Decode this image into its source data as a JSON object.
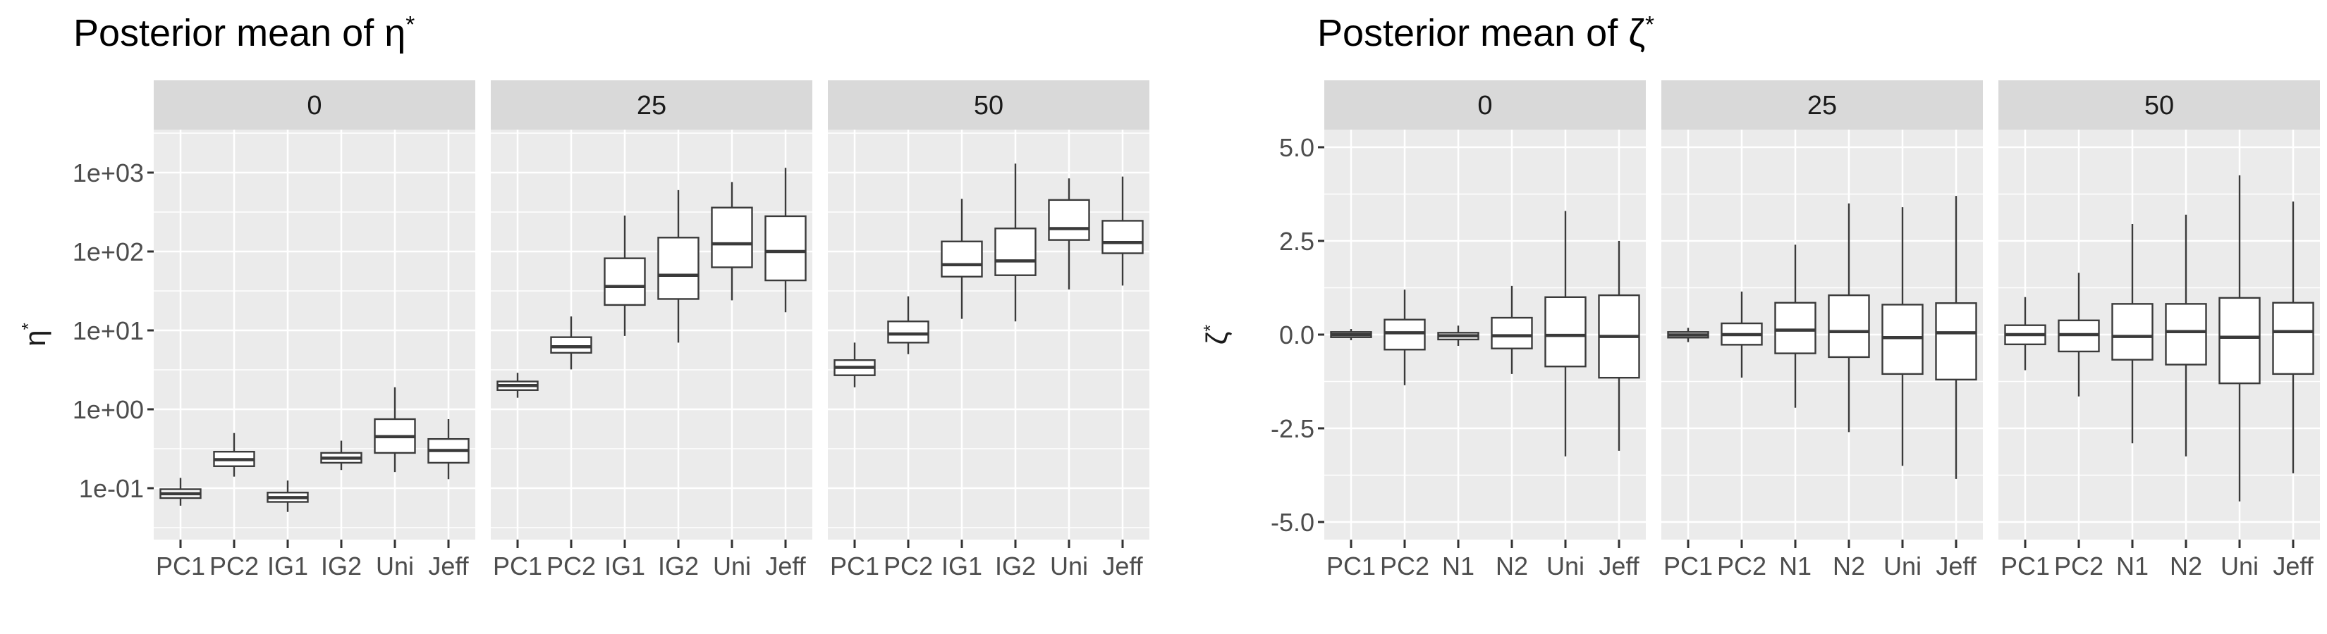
{
  "page": {
    "background": "#ffffff"
  },
  "theme": {
    "panel_bg": "#EBEBEB",
    "strip_bg": "#D9D9D9",
    "grid_color": "#FFFFFF",
    "box_stroke": "#3A3A3A",
    "box_fill": "#FFFFFF",
    "axis_text_color": "#4D4D4D",
    "strip_text_color": "#1A1A1A",
    "title_color": "#000000",
    "tick_color": "#333333"
  },
  "chart_data": [
    {
      "id": "eta",
      "type": "boxplot",
      "title": {
        "base": "Posterior mean of η",
        "sup": "*"
      },
      "y_axis": {
        "label_base": "η",
        "label_sup": "*",
        "scale": "log10",
        "ticks": [
          {
            "label": "1e+03",
            "value": 1000
          },
          {
            "label": "1e+02",
            "value": 100
          },
          {
            "label": "1e+01",
            "value": 10
          },
          {
            "label": "1e+00",
            "value": 1
          },
          {
            "label": "1e-01",
            "value": 0.1
          }
        ],
        "minor_values": [
          3162.3,
          316.23,
          31.623,
          3.1623,
          0.31623,
          0.031623
        ]
      },
      "x_axis": {
        "categories": [
          "PC1",
          "PC2",
          "IG1",
          "IG2",
          "Uni",
          "Jeff"
        ]
      },
      "facets": [
        {
          "label": "0",
          "boxes": [
            {
              "category": "PC1",
              "whisker_low": 0.06,
              "q1": 0.075,
              "median": 0.085,
              "q3": 0.097,
              "whisker_high": 0.135
            },
            {
              "category": "PC2",
              "whisker_low": 0.14,
              "q1": 0.19,
              "median": 0.23,
              "q3": 0.29,
              "whisker_high": 0.5
            },
            {
              "category": "IG1",
              "whisker_low": 0.05,
              "q1": 0.067,
              "median": 0.076,
              "q3": 0.088,
              "whisker_high": 0.125
            },
            {
              "category": "IG2",
              "whisker_low": 0.17,
              "q1": 0.21,
              "median": 0.24,
              "q3": 0.28,
              "whisker_high": 0.4
            },
            {
              "category": "Uni",
              "whisker_low": 0.16,
              "q1": 0.28,
              "median": 0.45,
              "q3": 0.75,
              "whisker_high": 1.9
            },
            {
              "category": "Jeff",
              "whisker_low": 0.13,
              "q1": 0.21,
              "median": 0.3,
              "q3": 0.42,
              "whisker_high": 0.75
            }
          ]
        },
        {
          "label": "25",
          "boxes": [
            {
              "category": "PC1",
              "whisker_low": 1.4,
              "q1": 1.75,
              "median": 2.0,
              "q3": 2.25,
              "whisker_high": 2.9
            },
            {
              "category": "PC2",
              "whisker_low": 3.2,
              "q1": 5.2,
              "median": 6.2,
              "q3": 8.2,
              "whisker_high": 15
            },
            {
              "category": "IG1",
              "whisker_low": 8.5,
              "q1": 21,
              "median": 36,
              "q3": 82,
              "whisker_high": 285
            },
            {
              "category": "IG2",
              "whisker_low": 7,
              "q1": 25,
              "median": 50,
              "q3": 150,
              "whisker_high": 600
            },
            {
              "category": "Uni",
              "whisker_low": 24,
              "q1": 63,
              "median": 125,
              "q3": 360,
              "whisker_high": 760
            },
            {
              "category": "Jeff",
              "whisker_low": 17,
              "q1": 43,
              "median": 100,
              "q3": 280,
              "whisker_high": 1150
            }
          ]
        },
        {
          "label": "50",
          "boxes": [
            {
              "category": "PC1",
              "whisker_low": 1.9,
              "q1": 2.7,
              "median": 3.4,
              "q3": 4.2,
              "whisker_high": 7
            },
            {
              "category": "PC2",
              "whisker_low": 5,
              "q1": 7,
              "median": 9,
              "q3": 13,
              "whisker_high": 27
            },
            {
              "category": "IG1",
              "whisker_low": 14,
              "q1": 48,
              "median": 68,
              "q3": 134,
              "whisker_high": 465
            },
            {
              "category": "IG2",
              "whisker_low": 13,
              "q1": 50,
              "median": 76,
              "q3": 196,
              "whisker_high": 1300
            },
            {
              "category": "Uni",
              "whisker_low": 33,
              "q1": 140,
              "median": 195,
              "q3": 450,
              "whisker_high": 845
            },
            {
              "category": "Jeff",
              "whisker_low": 37,
              "q1": 95,
              "median": 130,
              "q3": 245,
              "whisker_high": 890
            }
          ]
        }
      ]
    },
    {
      "id": "zeta",
      "type": "boxplot",
      "title": {
        "base": "Posterior mean of ζ",
        "sup": "*"
      },
      "y_axis": {
        "label_base": "ζ",
        "label_sup": "*",
        "scale": "linear",
        "ticks": [
          {
            "label": "5.0",
            "value": 5.0
          },
          {
            "label": "2.5",
            "value": 2.5
          },
          {
            "label": "0.0",
            "value": 0.0
          },
          {
            "label": "-2.5",
            "value": -2.5
          },
          {
            "label": "-5.0",
            "value": -5.0
          }
        ],
        "minor_values": [
          3.75,
          1.25,
          -1.25,
          -3.75
        ]
      },
      "x_axis": {
        "categories": [
          "PC1",
          "PC2",
          "N1",
          "N2",
          "Uni",
          "Jeff"
        ]
      },
      "facets": [
        {
          "label": "0",
          "boxes": [
            {
              "category": "PC1",
              "whisker_low": -0.15,
              "q1": -0.07,
              "median": 0.0,
              "q3": 0.07,
              "whisker_high": 0.15
            },
            {
              "category": "PC2",
              "whisker_low": -1.35,
              "q1": -0.4,
              "median": 0.05,
              "q3": 0.4,
              "whisker_high": 1.2
            },
            {
              "category": "N1",
              "whisker_low": -0.3,
              "q1": -0.13,
              "median": -0.03,
              "q3": 0.05,
              "whisker_high": 0.24
            },
            {
              "category": "N2",
              "whisker_low": -1.05,
              "q1": -0.37,
              "median": -0.03,
              "q3": 0.45,
              "whisker_high": 1.3
            },
            {
              "category": "Uni",
              "whisker_low": -3.25,
              "q1": -0.85,
              "median": -0.02,
              "q3": 1.0,
              "whisker_high": 3.3
            },
            {
              "category": "Jeff",
              "whisker_low": -3.1,
              "q1": -1.15,
              "median": -0.05,
              "q3": 1.05,
              "whisker_high": 2.5
            }
          ]
        },
        {
          "label": "25",
          "boxes": [
            {
              "category": "PC1",
              "whisker_low": -0.2,
              "q1": -0.08,
              "median": -0.01,
              "q3": 0.07,
              "whisker_high": 0.18
            },
            {
              "category": "PC2",
              "whisker_low": -1.15,
              "q1": -0.27,
              "median": 0.0,
              "q3": 0.3,
              "whisker_high": 1.15
            },
            {
              "category": "N1",
              "whisker_low": -1.95,
              "q1": -0.5,
              "median": 0.12,
              "q3": 0.85,
              "whisker_high": 2.4
            },
            {
              "category": "N2",
              "whisker_low": -2.6,
              "q1": -0.6,
              "median": 0.08,
              "q3": 1.05,
              "whisker_high": 3.5
            },
            {
              "category": "Uni",
              "whisker_low": -3.5,
              "q1": -1.05,
              "median": -0.08,
              "q3": 0.8,
              "whisker_high": 3.4
            },
            {
              "category": "Jeff",
              "whisker_low": -3.85,
              "q1": -1.2,
              "median": 0.05,
              "q3": 0.84,
              "whisker_high": 3.7
            }
          ]
        },
        {
          "label": "50",
          "boxes": [
            {
              "category": "PC1",
              "whisker_low": -0.95,
              "q1": -0.26,
              "median": 0.0,
              "q3": 0.25,
              "whisker_high": 1.0
            },
            {
              "category": "PC2",
              "whisker_low": -1.65,
              "q1": -0.45,
              "median": 0.0,
              "q3": 0.38,
              "whisker_high": 1.65
            },
            {
              "category": "N1",
              "whisker_low": -2.9,
              "q1": -0.67,
              "median": -0.05,
              "q3": 0.82,
              "whisker_high": 2.95
            },
            {
              "category": "N2",
              "whisker_low": -3.25,
              "q1": -0.8,
              "median": 0.08,
              "q3": 0.82,
              "whisker_high": 3.2
            },
            {
              "category": "Uni",
              "whisker_low": -4.45,
              "q1": -1.3,
              "median": -0.07,
              "q3": 0.98,
              "whisker_high": 4.25
            },
            {
              "category": "Jeff",
              "whisker_low": -3.7,
              "q1": -1.05,
              "median": 0.08,
              "q3": 0.85,
              "whisker_high": 3.55
            }
          ]
        }
      ]
    }
  ]
}
